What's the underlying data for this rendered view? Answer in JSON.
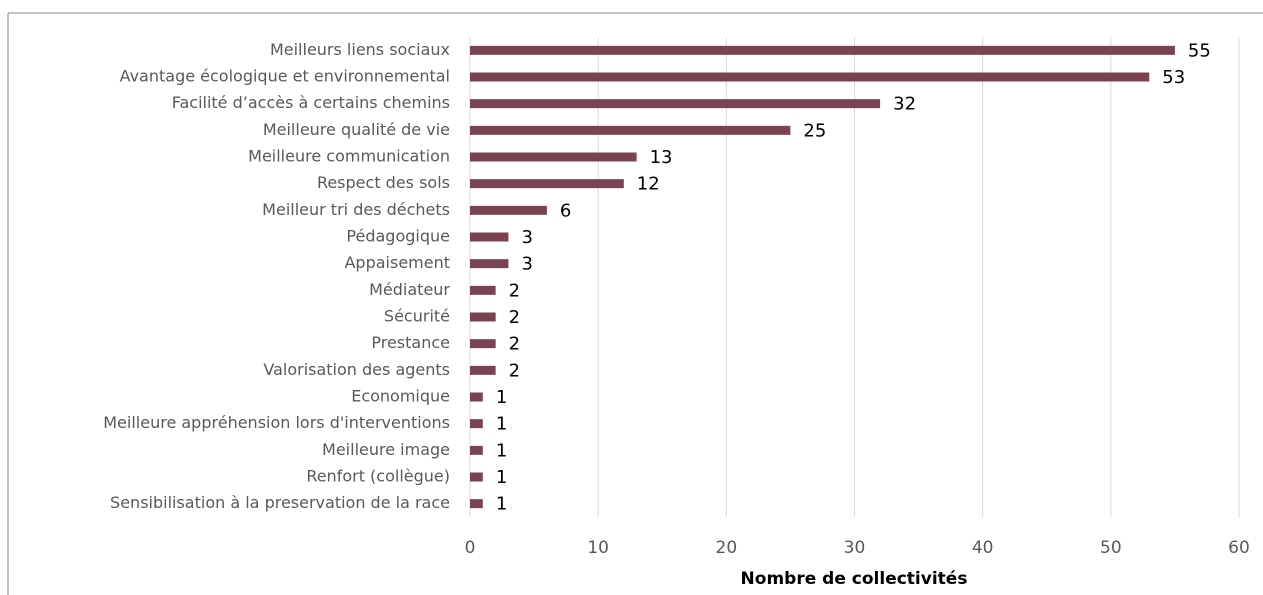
{
  "chart_data": {
    "type": "bar",
    "orientation": "horizontal",
    "categories": [
      "Meilleurs liens sociaux",
      "Avantage écologique et environnemental",
      "Facilité d’accès à certains chemins",
      "Meilleure qualité de vie",
      "Meilleure communication",
      "Respect des sols",
      "Meilleur tri des déchets",
      "Pédagogique",
      "Appaisement",
      "Médiateur",
      "Sécurité",
      "Prestance",
      "Valorisation des agents",
      "Economique",
      "Meilleure appréhension lors d'interventions",
      "Meilleure image",
      "Renfort (collègue)",
      "Sensibilisation à la preservation de la race"
    ],
    "values": [
      55,
      53,
      32,
      25,
      13,
      12,
      6,
      3,
      3,
      2,
      2,
      2,
      2,
      1,
      1,
      1,
      1,
      1
    ],
    "color": "#7b4252",
    "xlabel": "Nombre de collectivités",
    "xlim": [
      0,
      60
    ],
    "xticks": [
      0,
      10,
      20,
      30,
      40,
      50,
      60
    ],
    "grid": true
  }
}
